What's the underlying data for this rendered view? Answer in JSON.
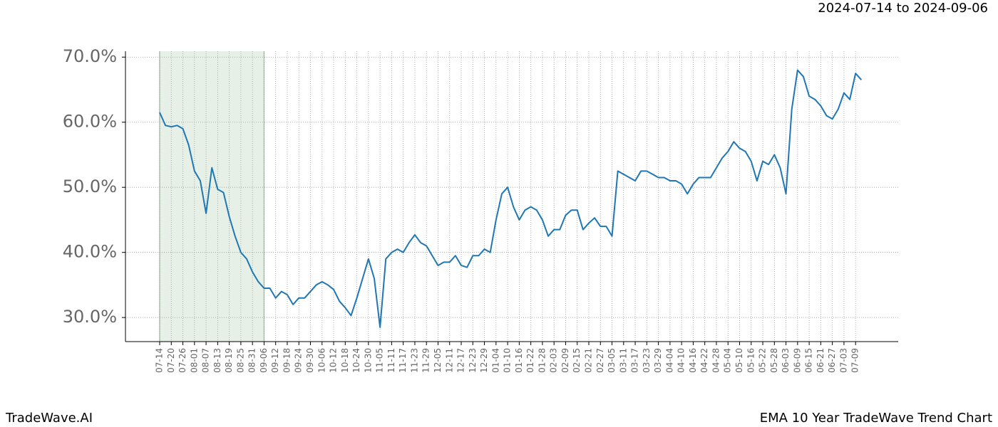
{
  "header": {
    "date_range": "2024-07-14 to 2024-09-06"
  },
  "footer": {
    "brand": "TradeWave.AI",
    "chart_name": "EMA 10 Year TradeWave Trend Chart"
  },
  "chart_data": {
    "type": "line",
    "categories": [
      "07-14",
      null,
      "07-20",
      null,
      "07-26",
      null,
      "08-01",
      null,
      "08-07",
      null,
      "08-13",
      null,
      "08-19",
      null,
      "08-25",
      null,
      "08-31",
      null,
      "09-06",
      null,
      "09-12",
      null,
      "09-18",
      null,
      "09-24",
      null,
      "09-30",
      null,
      "10-06",
      null,
      "10-12",
      null,
      "10-18",
      null,
      "10-24",
      null,
      "10-30",
      null,
      "11-05",
      null,
      "11-11",
      null,
      "11-17",
      null,
      "11-23",
      null,
      "11-29",
      null,
      "12-05",
      null,
      "12-11",
      null,
      "12-17",
      null,
      "12-23",
      null,
      "12-29",
      null,
      "01-04",
      null,
      "01-10",
      null,
      "01-16",
      null,
      "01-22",
      null,
      "01-28",
      null,
      "02-03",
      null,
      "02-09",
      null,
      "02-15",
      null,
      "02-21",
      null,
      "02-27",
      null,
      "03-05",
      null,
      "03-11",
      null,
      "03-17",
      null,
      "03-23",
      null,
      "03-29",
      null,
      "04-04",
      null,
      "04-10",
      null,
      "04-16",
      null,
      "04-22",
      null,
      "04-28",
      null,
      "05-04",
      null,
      "05-10",
      null,
      "05-16",
      null,
      "05-22",
      null,
      "05-28",
      null,
      "06-03",
      null,
      "06-09",
      null,
      "06-15",
      null,
      "06-21",
      null,
      "06-27",
      null,
      "07-03",
      null,
      "07-09",
      null
    ],
    "series": [
      {
        "color": "#1f77b4",
        "values": [
          61.5,
          59.5,
          59.3,
          59.5,
          59,
          56.5,
          52.5,
          51,
          46,
          53,
          49.7,
          49.2,
          45.5,
          42.5,
          40,
          39,
          37,
          35.5,
          34.5,
          34.5,
          33,
          34,
          33.5,
          32,
          33,
          33,
          34,
          35,
          35.5,
          35,
          34.3,
          32.5,
          31.5,
          30.3,
          33,
          36,
          39,
          36,
          28.5,
          39,
          40,
          40.5,
          40,
          41.5,
          42.7,
          41.5,
          41,
          39.5,
          38,
          38.5,
          38.5,
          39.5,
          38,
          37.7,
          39.5,
          39.5,
          40.5,
          40,
          45,
          49,
          50,
          47,
          45,
          46.5,
          47,
          46.5,
          45,
          42.5,
          43.5,
          43.5,
          45.7,
          46.5,
          46.5,
          43.5,
          44.5,
          45.3,
          44,
          44,
          42.5,
          52.5,
          52,
          51.5,
          51,
          52.5,
          52.5,
          52,
          51.5,
          51.5,
          51,
          51,
          50.5,
          49,
          50.5,
          51.5,
          51.5,
          51.5,
          53,
          54.5,
          55.5,
          57,
          56,
          55.5,
          54,
          51,
          54,
          53.5,
          55,
          53,
          49,
          62,
          68,
          67,
          64,
          63.5,
          62.5,
          61,
          60.5,
          62,
          64.5,
          63.5,
          67.5,
          66.5
        ]
      }
    ],
    "ylim": [
      26.3,
      70.9
    ],
    "yticks": [
      {
        "value": 30,
        "label": "30.0%"
      },
      {
        "value": 40,
        "label": "40.0%"
      },
      {
        "value": 50,
        "label": "50.0%"
      },
      {
        "value": 60,
        "label": "60.0%"
      },
      {
        "value": 70,
        "label": "70.0%"
      }
    ],
    "grid": true,
    "highlight": {
      "from": 0,
      "to": 18,
      "color": "#e6f0e6"
    }
  }
}
